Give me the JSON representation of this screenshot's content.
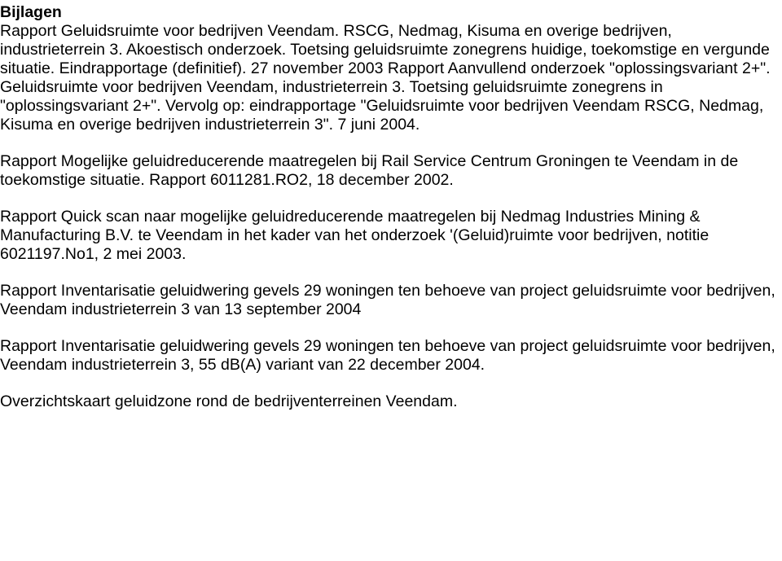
{
  "doc": {
    "heading": "Bijlagen",
    "p1": "Rapport Geluidsruimte voor bedrijven Veendam. RSCG, Nedmag, Kisuma en overige bedrijven, industrieterrein 3. Akoestisch onderzoek. Toetsing geluidsruimte zonegrens huidige, toekomstige en vergunde situatie. Eindrapportage (definitief). 27 november 2003 Rapport Aanvullend onderzoek \"oplossingsvariant 2+\". Geluidsruimte voor bedrijven Veendam, industrieterrein 3. Toetsing geluidsruimte zonegrens in \"oplossingsvariant 2+\". Vervolg op: eindrapportage \"Geluidsruimte voor bedrijven Veendam RSCG, Nedmag, Kisuma en overige bedrijven industrieterrein 3\". 7 juni 2004.",
    "p2": "Rapport Mogelijke geluidreducerende maatregelen bij Rail Service Centrum Groningen te Veendam in de toekomstige situatie. Rapport 6011281.RO2, 18 december 2002.",
    "p3": "Rapport Quick scan naar mogelijke geluidreducerende maatregelen bij Nedmag Industries Mining & Manufacturing B.V. te Veendam in het kader van het onderzoek '(Geluid)ruimte voor bedrijven, notitie 6021197.No1, 2 mei 2003.",
    "p4": "Rapport  Inventarisatie geluidwering gevels 29 woningen ten behoeve van project geluidsruimte voor bedrijven, Veendam industrieterrein 3 van 13 september 2004",
    "p5": "Rapport  Inventarisatie geluidwering gevels 29 woningen ten behoeve van project geluidsruimte voor bedrijven, Veendam industrieterrein 3, 55 dB(A) variant van 22 december 2004.",
    "p6": "Overzichtskaart geluidzone rond de bedrijventerreinen Veendam."
  }
}
